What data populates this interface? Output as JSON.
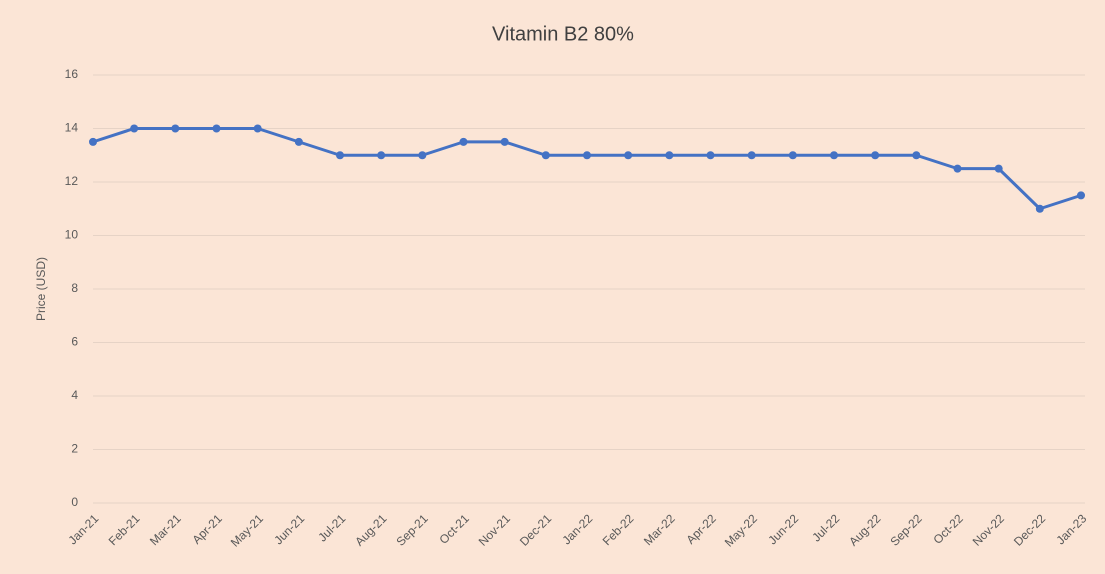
{
  "chart_data": {
    "type": "line",
    "title": "Vitamin B2 80%",
    "y_label": "Price (USD)",
    "categories": [
      "Jan-21",
      "Feb-21",
      "Mar-21",
      "Apr-21",
      "May-21",
      "Jun-21",
      "Jul-21",
      "Aug-21",
      "Sep-21",
      "Oct-21",
      "Nov-21",
      "Dec-21",
      "Jan-22",
      "Feb-22",
      "Mar-22",
      "Apr-22",
      "May-22",
      "Jun-22",
      "Jul-22",
      "Aug-22",
      "Sep-22",
      "Oct-22",
      "Nov-22",
      "Dec-22",
      "Jan-23"
    ],
    "series": [
      {
        "name": "Vitamin B2 80%",
        "color": "#4472c4",
        "values": [
          13.5,
          14,
          14,
          14,
          14,
          13.5,
          13,
          13,
          13,
          13.5,
          13.5,
          13,
          13,
          13,
          13,
          13,
          13,
          13,
          13,
          13,
          13,
          12.5,
          12.5,
          11,
          11.5
        ]
      }
    ],
    "ylim": [
      0,
      16
    ],
    "yticks": [
      0,
      2,
      4,
      6,
      8,
      10,
      12,
      14,
      16
    ],
    "grid": true,
    "legend": false
  }
}
